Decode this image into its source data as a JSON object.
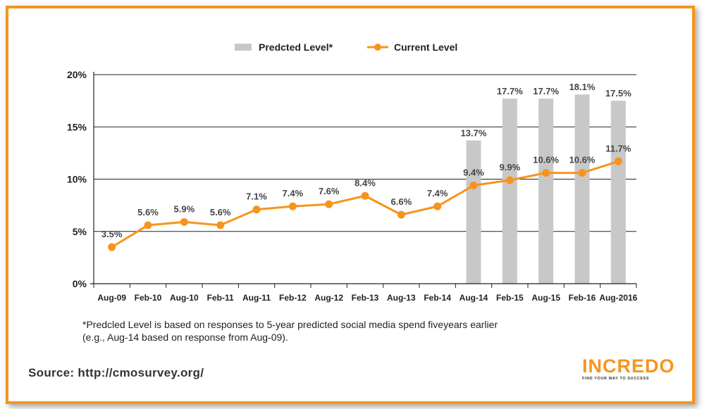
{
  "colors": {
    "border": "#f7941d",
    "line": "#f7941d",
    "bar": "#c8c8c8",
    "axis": "#222222"
  },
  "chart_data": {
    "type": "bar+line",
    "categories": [
      "Aug-09",
      "Feb-10",
      "Aug-10",
      "Feb-11",
      "Aug-11",
      "Feb-12",
      "Aug-12",
      "Feb-13",
      "Aug-13",
      "Feb-14",
      "Aug-14",
      "Feb-15",
      "Aug-15",
      "Feb-16",
      "Aug-2016"
    ],
    "series": [
      {
        "name": "Predcted Level*",
        "type": "bar",
        "values": [
          null,
          null,
          null,
          null,
          null,
          null,
          null,
          null,
          null,
          null,
          13.7,
          17.7,
          17.7,
          18.1,
          17.5
        ],
        "labels": [
          "",
          "",
          "",
          "",
          "",
          "",
          "",
          "",
          "",
          "",
          "13.7%",
          "17.7%",
          "17.7%",
          "18.1%",
          "17.5%"
        ]
      },
      {
        "name": "Current Level",
        "type": "line",
        "values": [
          3.5,
          5.6,
          5.9,
          5.6,
          7.1,
          7.4,
          7.6,
          8.4,
          6.6,
          7.4,
          9.4,
          9.9,
          10.6,
          10.6,
          11.7
        ],
        "labels": [
          "3.5%",
          "5.6%",
          "5.9%",
          "5.6%",
          "7.1%",
          "7.4%",
          "7.6%",
          "8.4%",
          "6.6%",
          "7.4%",
          "9.4%",
          "9.9%",
          "10.6%",
          "10.6%",
          "11.7%"
        ]
      }
    ],
    "yticks": [
      "0%",
      "5%",
      "10%",
      "15%",
      "20%"
    ],
    "ytick_values": [
      0,
      5,
      10,
      15,
      20
    ],
    "ylim": [
      0,
      20
    ],
    "legend_position": "top-center",
    "grid": true
  },
  "footnote": {
    "line1": "*Predcled Level is based on responses to 5-year predicted social media spend fiveyears earlier",
    "line2": "(e.g., Aug-14 based on response from Aug-09)."
  },
  "source": "Source: http://cmosurvey.org/",
  "logo": {
    "word": "INCREDO",
    "tagline": "FIND YOUR WAY TO SUCCESS",
    "icon": "compass-icon"
  }
}
